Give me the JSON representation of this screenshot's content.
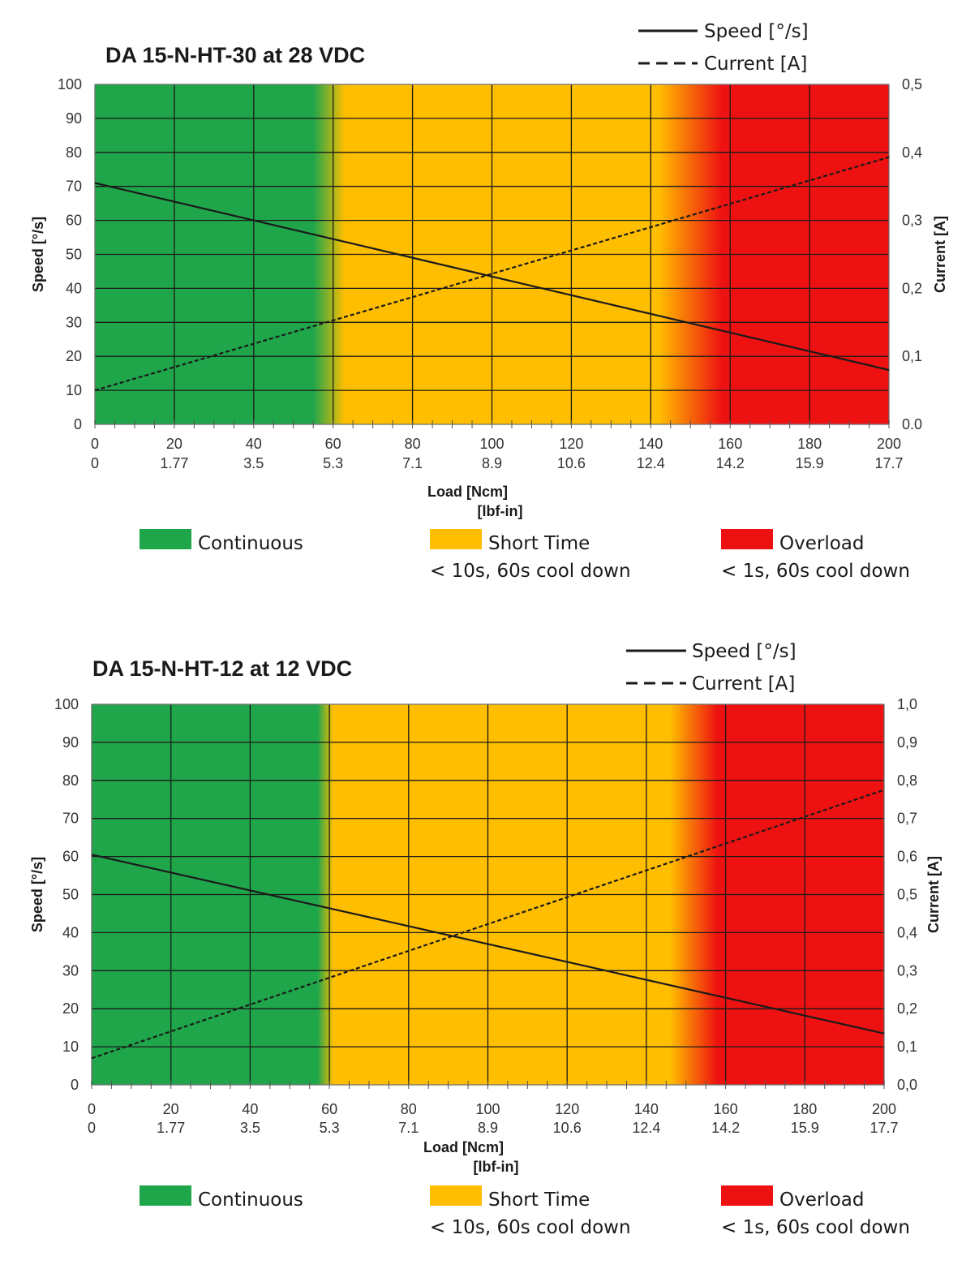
{
  "chart_data": [
    {
      "type": "line",
      "title": "DA 15-N-HT-30 at 28 VDC",
      "xlabel": "Load [Ncm]",
      "xlabel2": "[lbf-in]",
      "ylabel": "Speed [°/s]",
      "y2label": "Current [A]",
      "x_ticks": [
        "0",
        "20",
        "40",
        "60",
        "80",
        "100",
        "120",
        "140",
        "160",
        "180",
        "200"
      ],
      "x_ticks_secondary": [
        "0",
        "1.77",
        "3.5",
        "5.3",
        "7.1",
        "8.9",
        "10.6",
        "12.4",
        "14.2",
        "15.9",
        "17.7"
      ],
      "y_ticks": [
        "0",
        "10",
        "20",
        "30",
        "40",
        "50",
        "60",
        "70",
        "80",
        "90",
        "100"
      ],
      "y2_ticks": [
        "0.0",
        "0,1",
        "0,2",
        "0,3",
        "0,4",
        "0,5"
      ],
      "xlim": [
        0,
        200
      ],
      "ylim": [
        0,
        100
      ],
      "y2lim": [
        0,
        0.5
      ],
      "grid": true,
      "legend_position": "top-right",
      "series": [
        {
          "name": "Speed [°/s]",
          "axis": "left",
          "style": "solid",
          "x": [
            0,
            200
          ],
          "values": [
            71,
            16
          ]
        },
        {
          "name": "Current [A]",
          "axis": "right",
          "style": "dashed",
          "x": [
            0,
            200
          ],
          "values": [
            0.05,
            0.393
          ]
        }
      ],
      "zones": [
        {
          "label": "Continuous",
          "note": "",
          "color": "#1fa64b",
          "from": 0,
          "to": 55
        },
        {
          "label": "Short Time",
          "note": "< 10s, 60s cool down",
          "color": "#ffbe00",
          "from": 63,
          "to": 142
        },
        {
          "label": "Overload",
          "note": "< 1s, 60s cool down",
          "color": "#ee1111",
          "from": 158,
          "to": 200
        }
      ]
    },
    {
      "type": "line",
      "title": "DA 15-N-HT-12 at 12 VDC",
      "xlabel": "Load [Ncm]",
      "xlabel2": "[lbf-in]",
      "ylabel": "Speed [°/s]",
      "y2label": "Current [A]",
      "x_ticks": [
        "0",
        "20",
        "40",
        "60",
        "80",
        "100",
        "120",
        "140",
        "160",
        "180",
        "200"
      ],
      "x_ticks_secondary": [
        "0",
        "1.77",
        "3.5",
        "5.3",
        "7.1",
        "8.9",
        "10.6",
        "12.4",
        "14.2",
        "15.9",
        "17.7"
      ],
      "y_ticks": [
        "0",
        "10",
        "20",
        "30",
        "40",
        "50",
        "60",
        "70",
        "80",
        "90",
        "100"
      ],
      "y2_ticks": [
        "0,0",
        "0,1",
        "0,2",
        "0,3",
        "0,4",
        "0,5",
        "0,6",
        "0,7",
        "0,8",
        "0,9",
        "1,0"
      ],
      "xlim": [
        0,
        200
      ],
      "ylim": [
        0,
        100
      ],
      "y2lim": [
        0,
        1.0
      ],
      "grid": true,
      "legend_position": "top-right",
      "series": [
        {
          "name": "Speed [°/s]",
          "axis": "left",
          "style": "solid",
          "x": [
            0,
            200
          ],
          "values": [
            60.5,
            13.5
          ]
        },
        {
          "name": "Current [A]",
          "axis": "right",
          "style": "dashed",
          "x": [
            0,
            200
          ],
          "values": [
            0.07,
            0.775
          ]
        }
      ],
      "zones": [
        {
          "label": "Continuous",
          "note": "",
          "color": "#1fa64b",
          "from": 0,
          "to": 57
        },
        {
          "label": "Short Time",
          "note": "< 10s, 60s cool down",
          "color": "#ffbe00",
          "from": 61,
          "to": 146
        },
        {
          "label": "Overload",
          "note": "< 1s, 60s cool down",
          "color": "#ee1111",
          "from": 158,
          "to": 200
        }
      ]
    }
  ]
}
